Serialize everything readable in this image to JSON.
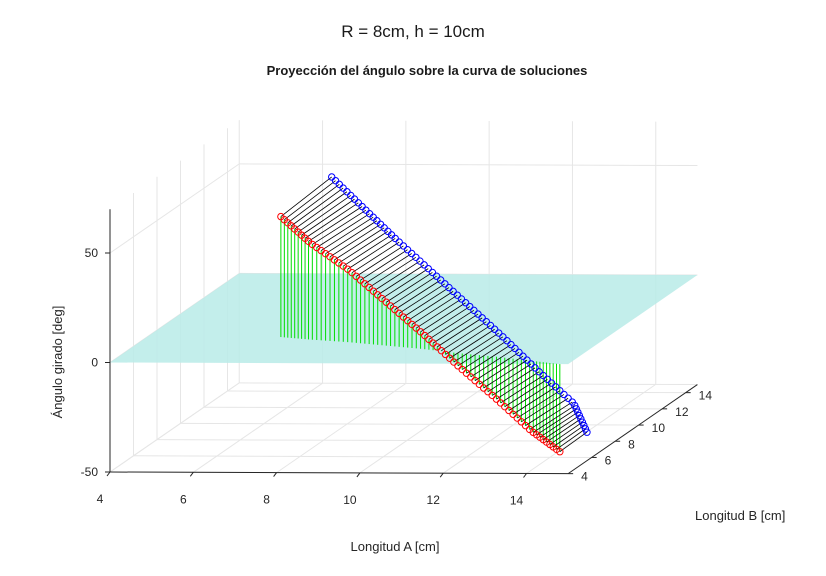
{
  "figure": {
    "suptitle": "R = 8cm, h = 10cm"
  },
  "chart_data": {
    "type": "scatter3d",
    "title": "Proyección del ángulo sobre la curva de soluciones",
    "xlabel": "Longitud A [cm]",
    "ylabel": "Longitud B [cm]",
    "zlabel": "Ángulo girado [deg]",
    "xlim": [
      4,
      15
    ],
    "ylim": [
      4,
      15
    ],
    "zlim": [
      -50,
      70
    ],
    "xticks": [
      "4",
      "6",
      "8",
      "10",
      "12",
      "14"
    ],
    "yticks": [
      "4",
      "6",
      "8",
      "10",
      "12",
      "14"
    ],
    "zticks": [
      "-50",
      "0",
      "50"
    ],
    "grid": true,
    "colors": {
      "curve_a": "#ff0000",
      "curve_b": "#0000ff",
      "connectors": "#000000",
      "stems": "#00dd00",
      "plane": "#b8ebe7",
      "grid": "#e6e6e6",
      "axis": "#262626"
    },
    "plane_z": 0,
    "series": [
      {
        "marker": "o-red",
        "x": [
          7.2,
          8.0,
          9.0,
          10.0,
          11.0,
          12.0,
          13.0,
          14.0,
          14.8
        ],
        "y": [
          7.2,
          6.9,
          6.6,
          6.2,
          5.8,
          5.3,
          4.9,
          4.4,
          4.0
        ],
        "z": [
          55,
          44,
          33,
          20,
          7,
          -6,
          -19,
          -32,
          -40
        ]
      },
      {
        "marker": "o-blue",
        "x": [
          7.8,
          8.7,
          9.6,
          10.6,
          11.6,
          12.6,
          13.6,
          14.6,
          15.0
        ],
        "y": [
          9.4,
          9.0,
          8.5,
          8.0,
          7.5,
          7.0,
          6.4,
          5.9,
          5.6
        ],
        "z": [
          65,
          52,
          40,
          27,
          14,
          1,
          -12,
          -25,
          -37
        ]
      }
    ]
  }
}
